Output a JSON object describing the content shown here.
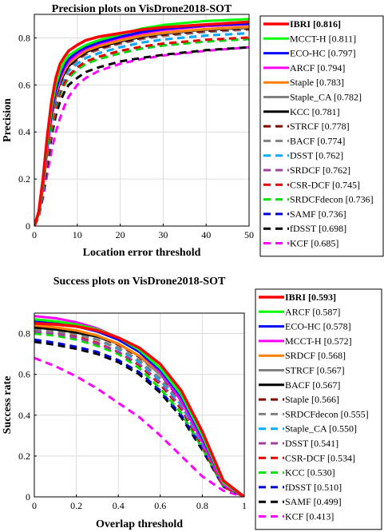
{
  "chart_data": [
    {
      "type": "line",
      "title": "Precision plots on VisDrone2018-SOT",
      "xlabel": "Location error threshold",
      "ylabel": "Precision",
      "xlim": [
        0,
        50
      ],
      "ylim": [
        0,
        0.9
      ],
      "xticks": [
        "0",
        "10",
        "20",
        "30",
        "40",
        "50"
      ],
      "yticks": [
        "0",
        "0.2",
        "0.4",
        "0.6",
        "0.8"
      ],
      "grid": true,
      "legend_position": "outside-right",
      "x": [
        0,
        1,
        2,
        3,
        4,
        5,
        6,
        7,
        8,
        10,
        12,
        15,
        20,
        25,
        30,
        40,
        50
      ],
      "series": [
        {
          "name": "IBRI [0.816]",
          "color": "#ff0000",
          "dash": "solid",
          "bold": true,
          "values": [
            0,
            0.06,
            0.2,
            0.38,
            0.53,
            0.63,
            0.69,
            0.72,
            0.745,
            0.77,
            0.79,
            0.805,
            0.82,
            0.835,
            0.845,
            0.857,
            0.868
          ]
        },
        {
          "name": "MCCT-H [0.811]",
          "color": "#00ff00",
          "dash": "solid",
          "values": [
            0,
            0.05,
            0.18,
            0.35,
            0.5,
            0.6,
            0.66,
            0.7,
            0.725,
            0.75,
            0.77,
            0.79,
            0.815,
            0.84,
            0.855,
            0.872,
            0.88
          ]
        },
        {
          "name": "ECO-HC [0.797]",
          "color": "#0000ff",
          "dash": "solid",
          "values": [
            0,
            0.05,
            0.17,
            0.34,
            0.48,
            0.58,
            0.64,
            0.68,
            0.71,
            0.74,
            0.76,
            0.78,
            0.805,
            0.825,
            0.838,
            0.853,
            0.86
          ]
        },
        {
          "name": "ARCF [0.794]",
          "color": "#ff00ff",
          "dash": "solid",
          "values": [
            0,
            0.05,
            0.17,
            0.33,
            0.47,
            0.57,
            0.63,
            0.67,
            0.7,
            0.73,
            0.755,
            0.775,
            0.8,
            0.82,
            0.833,
            0.85,
            0.858
          ]
        },
        {
          "name": "Staple [0.783]",
          "color": "#ff8000",
          "dash": "solid",
          "values": [
            0,
            0.05,
            0.16,
            0.32,
            0.46,
            0.56,
            0.62,
            0.66,
            0.69,
            0.72,
            0.745,
            0.765,
            0.79,
            0.81,
            0.822,
            0.838,
            0.847
          ]
        },
        {
          "name": "Staple_CA [0.782]",
          "color": "#808080",
          "dash": "solid",
          "values": [
            0,
            0.05,
            0.16,
            0.32,
            0.46,
            0.56,
            0.62,
            0.66,
            0.69,
            0.72,
            0.745,
            0.765,
            0.788,
            0.808,
            0.82,
            0.836,
            0.845
          ]
        },
        {
          "name": "KCC [0.781]",
          "color": "#000000",
          "dash": "solid",
          "values": [
            0,
            0.05,
            0.16,
            0.32,
            0.46,
            0.55,
            0.61,
            0.65,
            0.68,
            0.715,
            0.74,
            0.76,
            0.785,
            0.805,
            0.818,
            0.835,
            0.843
          ]
        },
        {
          "name": "STRCF [0.778]",
          "color": "#800000",
          "dash": "dash",
          "values": [
            0,
            0.05,
            0.16,
            0.31,
            0.45,
            0.55,
            0.61,
            0.65,
            0.68,
            0.71,
            0.735,
            0.755,
            0.78,
            0.8,
            0.813,
            0.83,
            0.84
          ]
        },
        {
          "name": "BACF [0.774]",
          "color": "#808080",
          "dash": "dash",
          "values": [
            0,
            0.05,
            0.15,
            0.3,
            0.44,
            0.54,
            0.6,
            0.64,
            0.67,
            0.705,
            0.73,
            0.75,
            0.775,
            0.795,
            0.808,
            0.825,
            0.835
          ]
        },
        {
          "name": "DSST [0.762]",
          "color": "#00aaff",
          "dash": "dash",
          "values": [
            0,
            0.05,
            0.15,
            0.3,
            0.43,
            0.53,
            0.59,
            0.63,
            0.66,
            0.69,
            0.715,
            0.735,
            0.76,
            0.78,
            0.793,
            0.81,
            0.82
          ]
        },
        {
          "name": "SRDCF [0.762]",
          "color": "#a040a0",
          "dash": "dash",
          "values": [
            0,
            0.05,
            0.15,
            0.3,
            0.43,
            0.53,
            0.59,
            0.63,
            0.66,
            0.69,
            0.715,
            0.735,
            0.76,
            0.78,
            0.793,
            0.81,
            0.82
          ]
        },
        {
          "name": "CSR-DCF [0.745]",
          "color": "#e00000",
          "dash": "dash",
          "values": [
            0,
            0.04,
            0.14,
            0.28,
            0.41,
            0.51,
            0.57,
            0.61,
            0.64,
            0.675,
            0.7,
            0.72,
            0.745,
            0.763,
            0.776,
            0.792,
            0.802
          ]
        },
        {
          "name": "SRDCFdecon [0.736]",
          "color": "#00e000",
          "dash": "dash",
          "values": [
            0,
            0.04,
            0.14,
            0.28,
            0.4,
            0.5,
            0.56,
            0.6,
            0.63,
            0.665,
            0.69,
            0.71,
            0.735,
            0.755,
            0.768,
            0.785,
            0.795
          ]
        },
        {
          "name": "SAMF [0.736]",
          "color": "#0000d0",
          "dash": "dash",
          "values": [
            0,
            0.04,
            0.14,
            0.28,
            0.4,
            0.5,
            0.56,
            0.6,
            0.63,
            0.665,
            0.69,
            0.71,
            0.735,
            0.755,
            0.768,
            0.785,
            0.795
          ]
        },
        {
          "name": "fDSST [0.698]",
          "color": "#000000",
          "dash": "dash",
          "values": [
            0,
            0.04,
            0.13,
            0.26,
            0.38,
            0.47,
            0.53,
            0.57,
            0.6,
            0.63,
            0.655,
            0.675,
            0.7,
            0.715,
            0.728,
            0.748,
            0.76
          ]
        },
        {
          "name": "KCF [0.685]",
          "color": "#ff00ff",
          "dash": "dash",
          "values": [
            0,
            0.04,
            0.12,
            0.22,
            0.32,
            0.4,
            0.46,
            0.51,
            0.55,
            0.6,
            0.63,
            0.66,
            0.69,
            0.71,
            0.725,
            0.745,
            0.76
          ]
        }
      ]
    },
    {
      "type": "line",
      "title": "Success plots on VisDrone2018-SOT",
      "xlabel": "Overlap threshold",
      "ylabel": "Success rate",
      "xlim": [
        0,
        1
      ],
      "ylim": [
        0,
        0.9
      ],
      "xticks": [
        "0",
        "0.2",
        "0.4",
        "0.6",
        "0.8",
        "1"
      ],
      "yticks": [
        "0",
        "0.2",
        "0.4",
        "0.6",
        "0.8"
      ],
      "grid": true,
      "legend_position": "outside-right",
      "x": [
        0,
        0.1,
        0.2,
        0.3,
        0.4,
        0.5,
        0.6,
        0.7,
        0.8,
        0.9,
        1.0
      ],
      "series": [
        {
          "name": "IBRI [0.593]",
          "color": "#ff0000",
          "dash": "solid",
          "bold": true,
          "values": [
            0.85,
            0.845,
            0.835,
            0.815,
            0.78,
            0.73,
            0.65,
            0.52,
            0.32,
            0.08,
            0
          ]
        },
        {
          "name": "ARCF [0.587]",
          "color": "#00ff00",
          "dash": "solid",
          "values": [
            0.87,
            0.86,
            0.845,
            0.82,
            0.78,
            0.72,
            0.63,
            0.5,
            0.3,
            0.07,
            0
          ]
        },
        {
          "name": "ECO-HC [0.578]",
          "color": "#0000ff",
          "dash": "solid",
          "values": [
            0.86,
            0.85,
            0.835,
            0.81,
            0.77,
            0.71,
            0.62,
            0.49,
            0.29,
            0.07,
            0
          ]
        },
        {
          "name": "MCCT-H [0.572]",
          "color": "#ff00ff",
          "dash": "solid",
          "values": [
            0.885,
            0.875,
            0.855,
            0.825,
            0.78,
            0.71,
            0.61,
            0.47,
            0.27,
            0.06,
            0
          ]
        },
        {
          "name": "SRDCF [0.568]",
          "color": "#ff8000",
          "dash": "solid",
          "values": [
            0.84,
            0.83,
            0.815,
            0.79,
            0.75,
            0.69,
            0.61,
            0.48,
            0.29,
            0.07,
            0
          ]
        },
        {
          "name": "STRCF [0.567]",
          "color": "#808080",
          "dash": "solid",
          "values": [
            0.84,
            0.83,
            0.815,
            0.79,
            0.75,
            0.69,
            0.6,
            0.48,
            0.28,
            0.07,
            0
          ]
        },
        {
          "name": "BACF [0.567]",
          "color": "#000000",
          "dash": "solid",
          "values": [
            0.83,
            0.82,
            0.805,
            0.785,
            0.75,
            0.69,
            0.6,
            0.48,
            0.29,
            0.07,
            0
          ]
        },
        {
          "name": "Staple [0.566]",
          "color": "#800000",
          "dash": "dash",
          "values": [
            0.84,
            0.83,
            0.81,
            0.785,
            0.745,
            0.685,
            0.6,
            0.47,
            0.28,
            0.06,
            0
          ]
        },
        {
          "name": "SRDCFdecon [0.555]",
          "color": "#808080",
          "dash": "dash",
          "values": [
            0.82,
            0.81,
            0.795,
            0.77,
            0.73,
            0.67,
            0.58,
            0.46,
            0.27,
            0.06,
            0
          ]
        },
        {
          "name": "Staple_CA [0.550]",
          "color": "#00aaff",
          "dash": "dash",
          "values": [
            0.83,
            0.82,
            0.8,
            0.77,
            0.725,
            0.66,
            0.57,
            0.45,
            0.26,
            0.06,
            0
          ]
        },
        {
          "name": "DSST [0.541]",
          "color": "#a040a0",
          "dash": "dash",
          "values": [
            0.81,
            0.8,
            0.78,
            0.75,
            0.71,
            0.65,
            0.56,
            0.44,
            0.26,
            0.06,
            0
          ]
        },
        {
          "name": "CSR-DCF [0.534]",
          "color": "#e00000",
          "dash": "dash",
          "values": [
            0.82,
            0.805,
            0.785,
            0.755,
            0.71,
            0.645,
            0.55,
            0.43,
            0.25,
            0.05,
            0
          ]
        },
        {
          "name": "KCC [0.530]",
          "color": "#00e000",
          "dash": "dash",
          "values": [
            0.8,
            0.79,
            0.77,
            0.74,
            0.7,
            0.63,
            0.53,
            0.41,
            0.24,
            0.05,
            0
          ]
        },
        {
          "name": "fDSST [0.510]",
          "color": "#0000d0",
          "dash": "dash",
          "values": [
            0.77,
            0.755,
            0.735,
            0.71,
            0.67,
            0.61,
            0.52,
            0.4,
            0.24,
            0.05,
            0
          ]
        },
        {
          "name": "SAMF [0.499]",
          "color": "#000000",
          "dash": "dash",
          "values": [
            0.76,
            0.745,
            0.725,
            0.7,
            0.66,
            0.6,
            0.51,
            0.39,
            0.23,
            0.05,
            0
          ]
        },
        {
          "name": "KCF [0.413]",
          "color": "#ff00ff",
          "dash": "dash",
          "values": [
            0.68,
            0.64,
            0.59,
            0.53,
            0.46,
            0.39,
            0.3,
            0.2,
            0.1,
            0.03,
            0
          ]
        }
      ]
    }
  ]
}
